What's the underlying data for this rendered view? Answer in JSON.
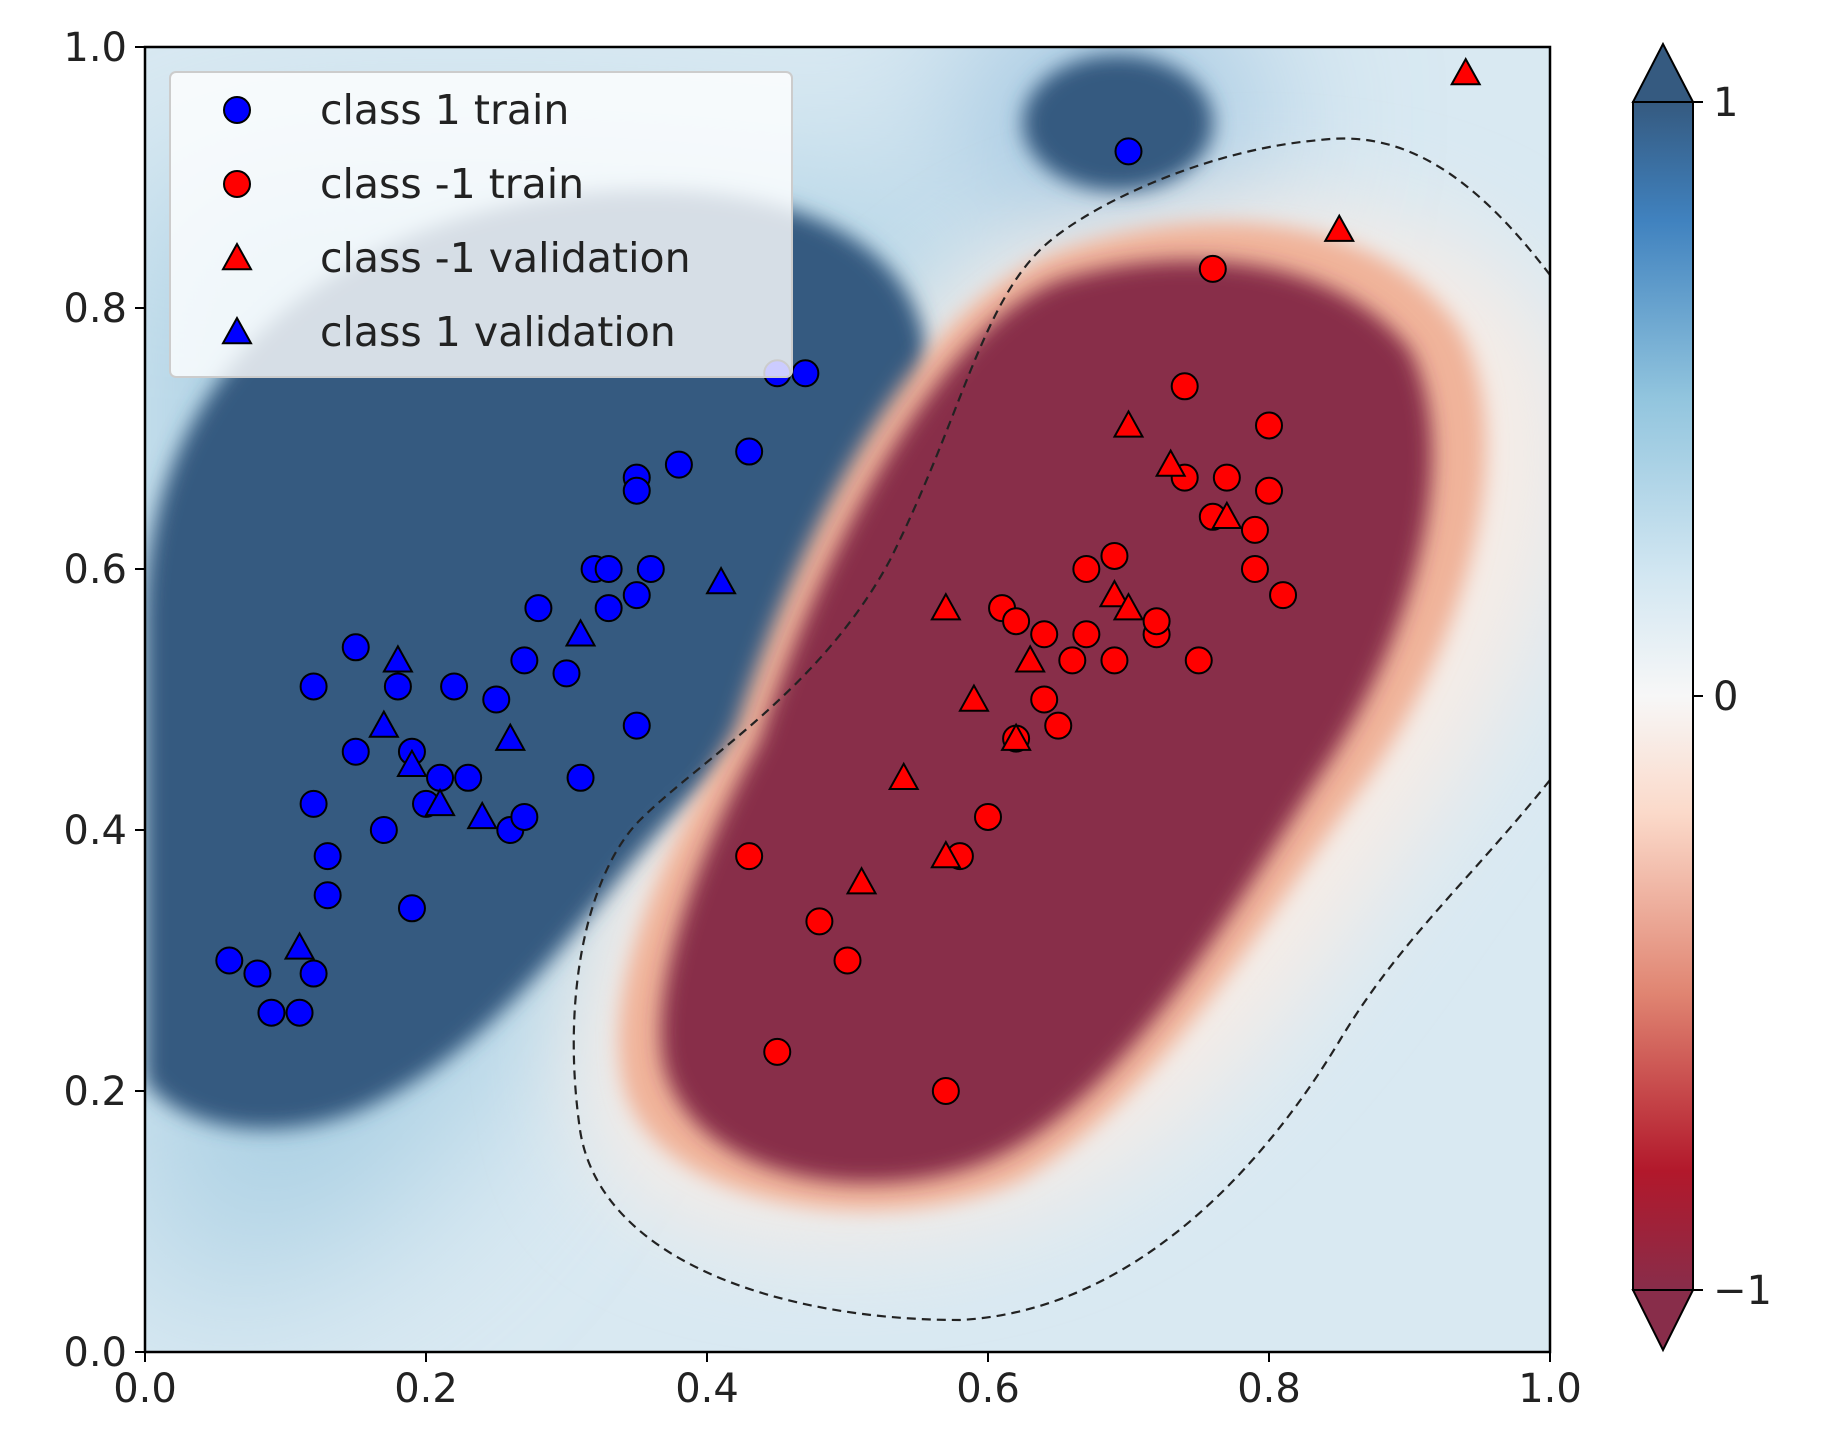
{
  "chart_data": {
    "type": "scatter",
    "title": "",
    "xlabel": "",
    "ylabel": "",
    "xlim": [
      0.0,
      1.0
    ],
    "ylim": [
      0.0,
      1.0
    ],
    "grid": false,
    "x_ticks": [
      "0.0",
      "0.2",
      "0.4",
      "0.6",
      "0.8",
      "1.0"
    ],
    "y_ticks": [
      "0.0",
      "0.2",
      "0.4",
      "0.6",
      "0.8",
      "1.0"
    ],
    "legend_position": "top-left",
    "legend": [
      {
        "label": "class 1 train",
        "marker": "circle",
        "color": "#0000ff"
      },
      {
        "label": "class -1 train",
        "marker": "circle",
        "color": "#ff0000"
      },
      {
        "label": "class -1 validation",
        "marker": "triangle",
        "color": "#ff0000"
      },
      {
        "label": "class 1 validation",
        "marker": "triangle",
        "color": "#0000ff"
      }
    ],
    "background": "decision function contour (RdBu colormap), dashed line marks the 0 level",
    "colorbar": {
      "ticks": [
        "1",
        "0",
        "−1"
      ],
      "range": [
        -1,
        1
      ],
      "colormap": [
        "#67001f",
        "#b2182b",
        "#d6604d",
        "#f4a582",
        "#fddbc7",
        "#f7f7f7",
        "#d1e5f0",
        "#92c5de",
        "#4393c3",
        "#2166ac",
        "#053061"
      ]
    },
    "series": [
      {
        "name": "class 1 train",
        "marker": "circle",
        "color": "#0000ff",
        "points": [
          [
            0.06,
            0.3
          ],
          [
            0.08,
            0.29
          ],
          [
            0.09,
            0.26
          ],
          [
            0.11,
            0.26
          ],
          [
            0.12,
            0.29
          ],
          [
            0.12,
            0.42
          ],
          [
            0.12,
            0.51
          ],
          [
            0.13,
            0.38
          ],
          [
            0.13,
            0.35
          ],
          [
            0.15,
            0.46
          ],
          [
            0.15,
            0.54
          ],
          [
            0.17,
            0.4
          ],
          [
            0.18,
            0.51
          ],
          [
            0.19,
            0.34
          ],
          [
            0.19,
            0.46
          ],
          [
            0.2,
            0.42
          ],
          [
            0.21,
            0.44
          ],
          [
            0.22,
            0.51
          ],
          [
            0.23,
            0.44
          ],
          [
            0.25,
            0.5
          ],
          [
            0.26,
            0.4
          ],
          [
            0.27,
            0.41
          ],
          [
            0.27,
            0.53
          ],
          [
            0.28,
            0.57
          ],
          [
            0.3,
            0.52
          ],
          [
            0.31,
            0.44
          ],
          [
            0.32,
            0.6
          ],
          [
            0.33,
            0.57
          ],
          [
            0.33,
            0.6
          ],
          [
            0.35,
            0.58
          ],
          [
            0.35,
            0.67
          ],
          [
            0.35,
            0.66
          ],
          [
            0.35,
            0.48
          ],
          [
            0.36,
            0.6
          ],
          [
            0.38,
            0.68
          ],
          [
            0.43,
            0.69
          ],
          [
            0.45,
            0.75
          ],
          [
            0.47,
            0.75
          ],
          [
            0.7,
            0.92
          ]
        ]
      },
      {
        "name": "class -1 train",
        "marker": "circle",
        "color": "#ff0000",
        "points": [
          [
            0.43,
            0.38
          ],
          [
            0.45,
            0.23
          ],
          [
            0.48,
            0.33
          ],
          [
            0.5,
            0.3
          ],
          [
            0.57,
            0.2
          ],
          [
            0.58,
            0.38
          ],
          [
            0.6,
            0.41
          ],
          [
            0.61,
            0.57
          ],
          [
            0.62,
            0.56
          ],
          [
            0.62,
            0.47
          ],
          [
            0.64,
            0.5
          ],
          [
            0.64,
            0.55
          ],
          [
            0.65,
            0.48
          ],
          [
            0.66,
            0.53
          ],
          [
            0.67,
            0.55
          ],
          [
            0.67,
            0.6
          ],
          [
            0.69,
            0.61
          ],
          [
            0.69,
            0.53
          ],
          [
            0.72,
            0.55
          ],
          [
            0.72,
            0.56
          ],
          [
            0.74,
            0.74
          ],
          [
            0.74,
            0.67
          ],
          [
            0.75,
            0.53
          ],
          [
            0.76,
            0.64
          ],
          [
            0.76,
            0.83
          ],
          [
            0.77,
            0.67
          ],
          [
            0.79,
            0.63
          ],
          [
            0.79,
            0.6
          ],
          [
            0.8,
            0.66
          ],
          [
            0.8,
            0.71
          ],
          [
            0.81,
            0.58
          ]
        ]
      },
      {
        "name": "class -1 validation",
        "marker": "triangle",
        "color": "#ff0000",
        "points": [
          [
            0.51,
            0.36
          ],
          [
            0.54,
            0.44
          ],
          [
            0.57,
            0.57
          ],
          [
            0.57,
            0.38
          ],
          [
            0.59,
            0.5
          ],
          [
            0.62,
            0.47
          ],
          [
            0.63,
            0.53
          ],
          [
            0.69,
            0.58
          ],
          [
            0.7,
            0.57
          ],
          [
            0.7,
            0.71
          ],
          [
            0.73,
            0.68
          ],
          [
            0.77,
            0.64
          ],
          [
            0.85,
            0.86
          ],
          [
            0.94,
            0.98
          ]
        ]
      },
      {
        "name": "class 1 validation",
        "marker": "triangle",
        "color": "#0000ff",
        "points": [
          [
            0.11,
            0.31
          ],
          [
            0.17,
            0.48
          ],
          [
            0.18,
            0.53
          ],
          [
            0.19,
            0.45
          ],
          [
            0.21,
            0.42
          ],
          [
            0.24,
            0.41
          ],
          [
            0.26,
            0.47
          ],
          [
            0.31,
            0.55
          ],
          [
            0.41,
            0.59
          ]
        ]
      }
    ]
  }
}
